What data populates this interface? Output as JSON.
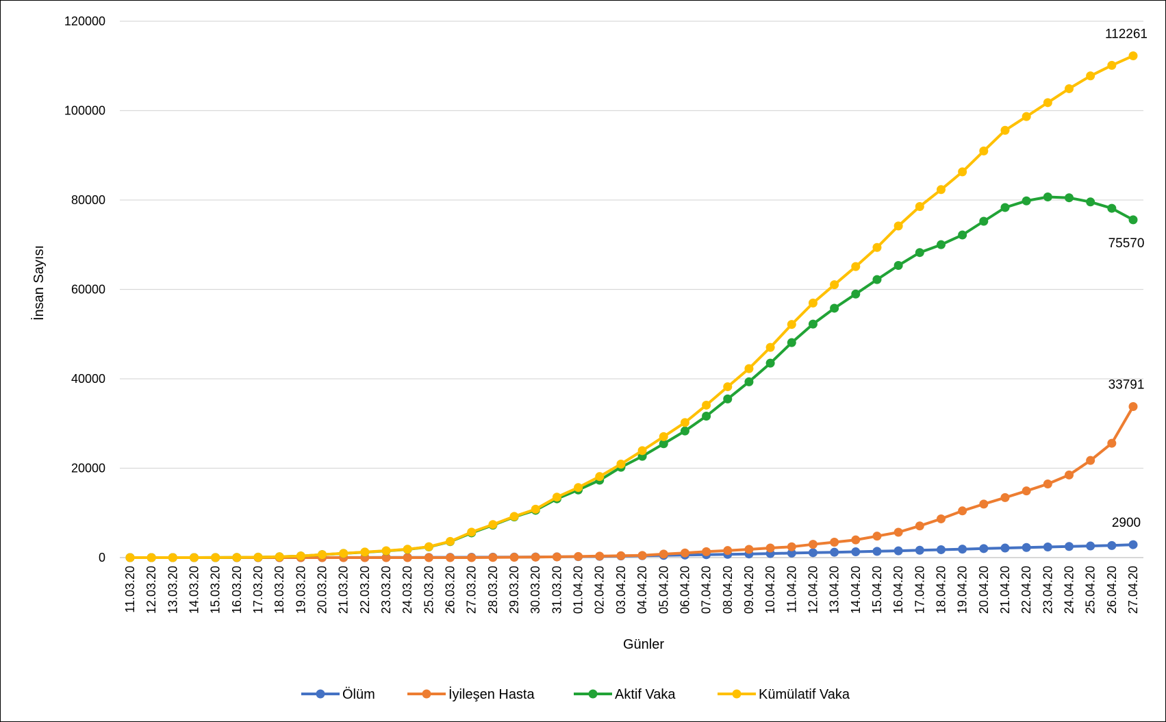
{
  "chart_data": {
    "type": "line",
    "xlabel": "Günler",
    "ylabel": "İnsan Sayısı",
    "ylim": [
      0,
      120000
    ],
    "yticks": [
      0,
      20000,
      40000,
      60000,
      80000,
      100000,
      120000
    ],
    "grid": true,
    "legend_position": "bottom",
    "categories": [
      "11.03.20",
      "12.03.20",
      "13.03.20",
      "14.03.20",
      "15.03.20",
      "16.03.20",
      "17.03.20",
      "18.03.20",
      "19.03.20",
      "20.03.20",
      "21.03.20",
      "22.03.20",
      "23.03.20",
      "24.03.20",
      "25.03.20",
      "26.03.20",
      "27.03.20",
      "28.03.20",
      "29.03.20",
      "30.03.20",
      "31.03.20",
      "01.04.20",
      "02.04.20",
      "03.04.20",
      "04.04.20",
      "05.04.20",
      "06.04.20",
      "07.04.20",
      "08.04.20",
      "09.04.20",
      "10.04.20",
      "11.04.20",
      "12.04.20",
      "13.04.20",
      "14.04.20",
      "15.04.20",
      "16.04.20",
      "17.04.20",
      "18.04.20",
      "19.04.20",
      "20.04.20",
      "21.04.20",
      "22.04.20",
      "23.04.20",
      "24.04.20",
      "25.04.20",
      "26.04.20",
      "27.04.20"
    ],
    "series": [
      {
        "name": "Ölüm",
        "color": "#4472C4",
        "values": [
          0,
          0,
          0,
          0,
          0,
          0,
          1,
          2,
          3,
          4,
          9,
          21,
          30,
          37,
          44,
          59,
          75,
          92,
          108,
          131,
          168,
          214,
          277,
          356,
          425,
          501,
          574,
          649,
          725,
          812,
          908,
          1006,
          1101,
          1198,
          1296,
          1403,
          1518,
          1643,
          1769,
          1890,
          2017,
          2140,
          2259,
          2376,
          2491,
          2600,
          2706,
          2900
        ],
        "end_label": "2900"
      },
      {
        "name": "İyileşen Hasta",
        "color": "#ED7D31",
        "values": [
          0,
          0,
          0,
          0,
          0,
          0,
          0,
          0,
          0,
          0,
          0,
          0,
          0,
          0,
          0,
          0,
          0,
          42,
          70,
          105,
          162,
          243,
          333,
          415,
          484,
          786,
          1042,
          1326,
          1582,
          1846,
          2142,
          2423,
          2965,
          3446,
          3957,
          4799,
          5674,
          7089,
          8668,
          10453,
          11976,
          13430,
          14918,
          16477,
          18491,
          21737,
          25582,
          33791
        ],
        "end_label": "33791"
      },
      {
        "name": "Aktif Vaka",
        "color": "#21A336",
        "values": [
          1,
          5,
          5,
          6,
          18,
          47,
          97,
          189,
          356,
          666,
          938,
          1215,
          1499,
          1835,
          2389,
          3570,
          5523,
          7264,
          9097,
          10583,
          13148,
          15135,
          17310,
          20212,
          22661,
          25471,
          28326,
          31648,
          35498,
          39324,
          43501,
          48095,
          52241,
          55792,
          58970,
          62202,
          65362,
          68246,
          70010,
          72181,
          75248,
          78321,
          79810,
          80693,
          80506,
          79571,
          78149,
          75570
        ],
        "end_label": "75570"
      },
      {
        "name": "Kümülatif Vaka",
        "color": "#FFC000",
        "values": [
          1,
          5,
          5,
          6,
          18,
          47,
          98,
          191,
          359,
          670,
          947,
          1236,
          1529,
          1872,
          2433,
          3629,
          5698,
          7402,
          9217,
          10827,
          13531,
          15679,
          18135,
          20921,
          23934,
          27069,
          30217,
          34109,
          38226,
          42282,
          47029,
          52167,
          56956,
          61049,
          65111,
          69392,
          74193,
          78546,
          82329,
          86306,
          90980,
          95591,
          98674,
          101790,
          104912,
          107773,
          110130,
          112261
        ],
        "end_label": "112261"
      }
    ]
  }
}
